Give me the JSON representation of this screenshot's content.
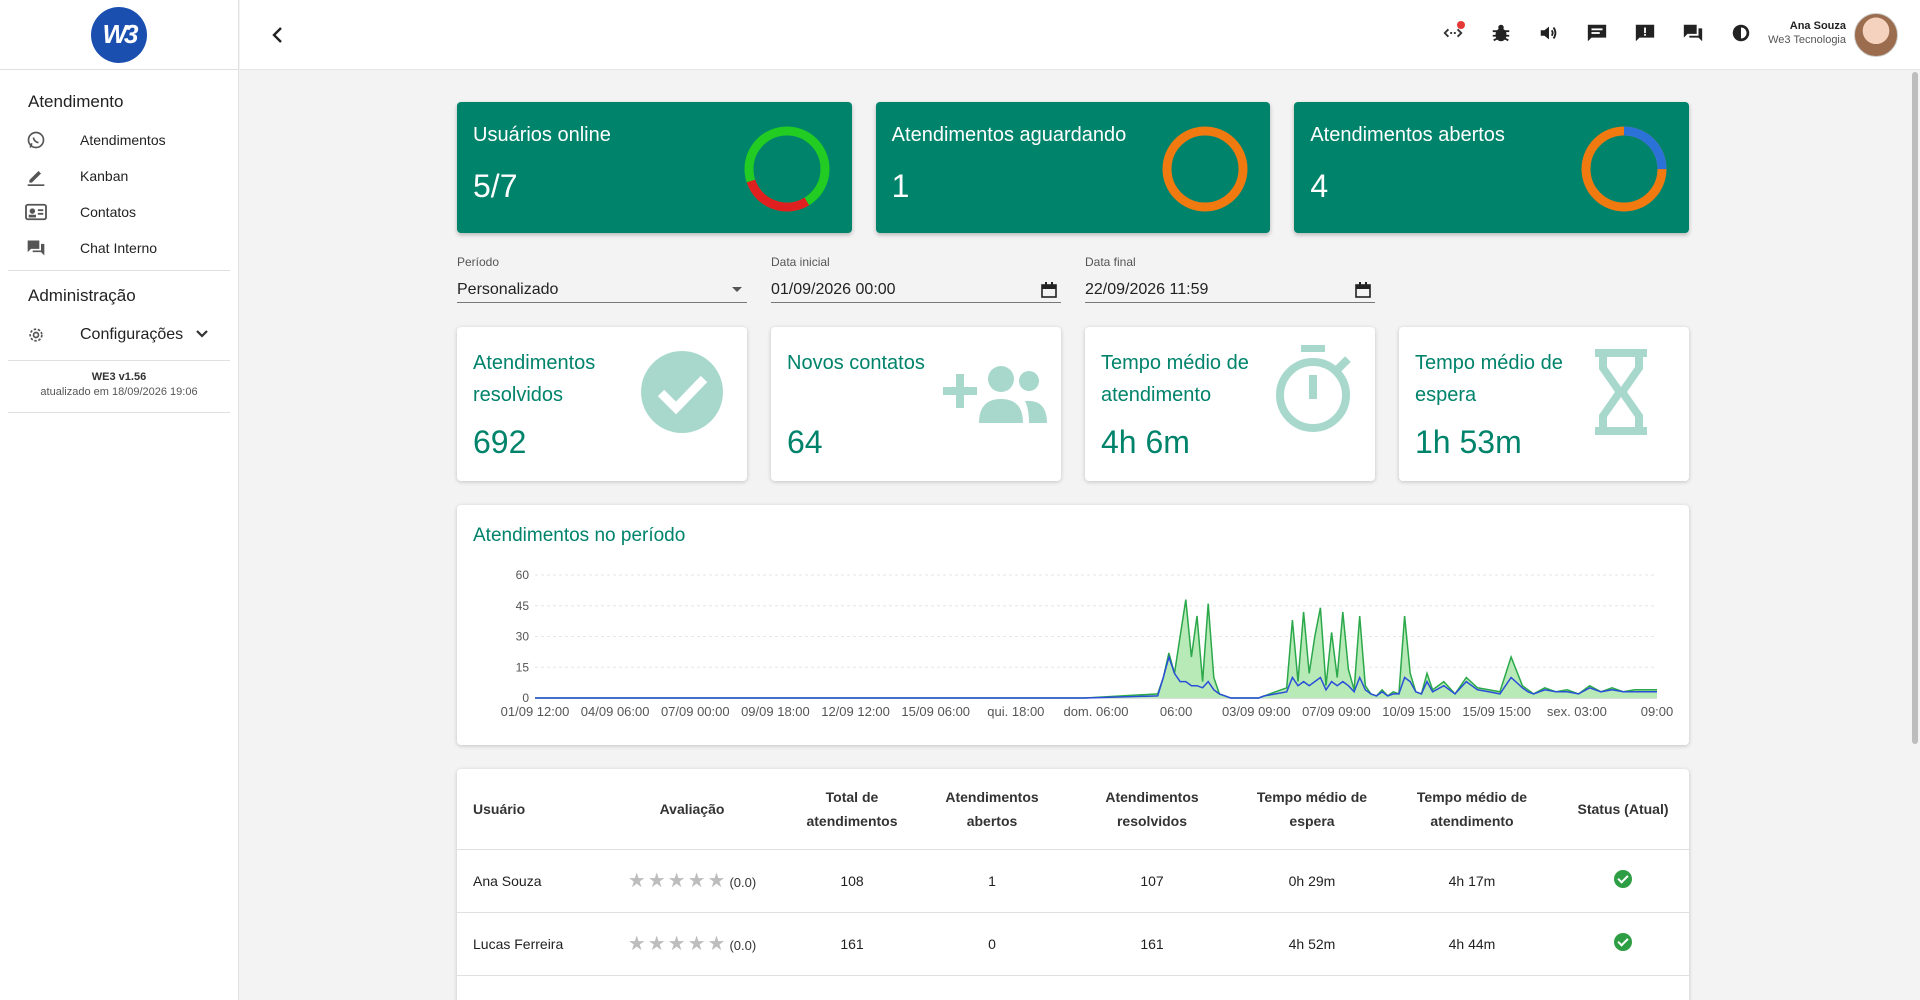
{
  "app": {
    "brand_mark": "W3",
    "version": "WE3 v1.56",
    "updated": "atualizado em 18/09/2026 19:06"
  },
  "sidebar": {
    "section1": "Atendimento",
    "items": [
      {
        "label": "Atendimentos",
        "icon": "whatsapp-icon"
      },
      {
        "label": "Kanban",
        "icon": "pencil-icon"
      },
      {
        "label": "Contatos",
        "icon": "contact-card-icon"
      },
      {
        "label": "Chat Interno",
        "icon": "chat-forum-icon"
      }
    ],
    "section2": "Administração",
    "config_label": "Configurações"
  },
  "header": {
    "user_name": "Ana Souza",
    "user_company": "We3 Tecnologia",
    "icons": [
      "connection-icon",
      "bug-icon",
      "volume-icon",
      "message-icon",
      "feedback-icon",
      "forum-icon",
      "theme-icon"
    ]
  },
  "kpis": [
    {
      "title": "Usuários online",
      "value": "5/7"
    },
    {
      "title": "Atendimentos aguardando",
      "value": "1"
    },
    {
      "title": "Atendimentos abertos",
      "value": "4"
    }
  ],
  "donuts": {
    "online": {
      "online_fraction": 0.714,
      "colors": [
        "#22cc22",
        "#e02020"
      ]
    },
    "waiting": {
      "fraction": 1.0,
      "colors": [
        "#f07a10"
      ]
    },
    "open": {
      "fraction_blue": 0.25,
      "colors": [
        "#2a72d8",
        "#f07a10"
      ]
    }
  },
  "filters": {
    "period_label": "Período",
    "period_value": "Personalizado",
    "start_label": "Data inicial",
    "start_value": "01/09/2026 00:00",
    "end_label": "Data final",
    "end_value": "22/09/2026 11:59"
  },
  "stats": [
    {
      "title": "Atendimentos resolvidos",
      "value": "692",
      "icon": "check-circle-icon"
    },
    {
      "title": "Novos contatos",
      "value": "64",
      "icon": "group-add-icon"
    },
    {
      "title": "Tempo médio de atendimento",
      "value": "4h 6m",
      "icon": "stopwatch-icon"
    },
    {
      "title": "Tempo médio de espera",
      "value": "1h 53m",
      "icon": "hourglass-icon"
    }
  ],
  "chart_data": {
    "type": "area",
    "title": "Atendimentos no período",
    "ylim": [
      0,
      60
    ],
    "yticks": [
      0,
      15,
      30,
      45,
      60
    ],
    "xticks": [
      "01/09 12:00",
      "04/09 06:00",
      "07/09 00:00",
      "09/09 18:00",
      "12/09 12:00",
      "15/09 06:00",
      "qui. 18:00",
      "dom. 06:00",
      "06:00",
      "03/09 09:00",
      "07/09 09:00",
      "10/09 15:00",
      "15/09 15:00",
      "sex. 03:00",
      "09:00"
    ],
    "grid": true,
    "x": [
      0,
      0.07,
      0.14,
      0.2,
      0.28,
      0.35,
      0.42,
      0.49,
      0.555,
      0.56,
      0.565,
      0.57,
      0.575,
      0.58,
      0.585,
      0.59,
      0.595,
      0.6,
      0.605,
      0.61,
      0.615,
      0.62,
      0.625,
      0.63,
      0.635,
      0.64,
      0.645,
      0.65,
      0.66,
      0.67,
      0.675,
      0.68,
      0.685,
      0.69,
      0.695,
      0.7,
      0.705,
      0.71,
      0.715,
      0.72,
      0.725,
      0.73,
      0.735,
      0.74,
      0.745,
      0.75,
      0.755,
      0.76,
      0.765,
      0.77,
      0.775,
      0.78,
      0.785,
      0.79,
      0.795,
      0.8,
      0.81,
      0.82,
      0.83,
      0.84,
      0.85,
      0.86,
      0.87,
      0.88,
      0.885,
      0.89,
      0.9,
      0.91,
      0.92,
      0.93,
      0.94,
      0.95,
      0.96,
      0.97,
      0.98,
      1.0
    ],
    "series": [
      {
        "color": "#2aa84a",
        "fill": "#b8eab8",
        "values": [
          0,
          0,
          0,
          0,
          0,
          0,
          0,
          0,
          2,
          10,
          22,
          12,
          30,
          48,
          20,
          40,
          8,
          46,
          10,
          2,
          1,
          0,
          0,
          0,
          0,
          0,
          0,
          1,
          3,
          5,
          38,
          8,
          42,
          12,
          30,
          44,
          6,
          32,
          10,
          42,
          14,
          4,
          40,
          6,
          2,
          1,
          4,
          1,
          3,
          2,
          40,
          12,
          3,
          2,
          12,
          4,
          8,
          2,
          10,
          5,
          4,
          3,
          20,
          6,
          4,
          2,
          5,
          3,
          4,
          2,
          6,
          3,
          5,
          3,
          4,
          4
        ]
      },
      {
        "color": "#2a4fd8",
        "fill": "none",
        "values": [
          0,
          0,
          0,
          0,
          0,
          0,
          0,
          0,
          1,
          10,
          20,
          12,
          8,
          8,
          6,
          6,
          5,
          8,
          4,
          2,
          1,
          0,
          0,
          0,
          0,
          0,
          0,
          1,
          2,
          3,
          10,
          6,
          8,
          6,
          8,
          10,
          4,
          8,
          6,
          8,
          6,
          3,
          10,
          4,
          2,
          1,
          3,
          1,
          2,
          2,
          10,
          8,
          3,
          2,
          8,
          3,
          6,
          2,
          8,
          4,
          3,
          2,
          10,
          5,
          3,
          2,
          4,
          3,
          3,
          2,
          5,
          3,
          4,
          3,
          3,
          3
        ]
      }
    ]
  },
  "table": {
    "headers": [
      "Usuário",
      "Avaliação",
      "Total de atendimentos",
      "Atendimentos abertos",
      "Atendimentos resolvidos",
      "Tempo médio de espera",
      "Tempo médio de atendimento",
      "Status (Atual)"
    ],
    "rows": [
      {
        "user": "Ana Souza",
        "stars": "★★★★★",
        "rating": "(0.0)",
        "total": "108",
        "open": "1",
        "resolved": "107",
        "wait": "0h 29m",
        "service": "4h 17m",
        "status": "online"
      },
      {
        "user": "Lucas Ferreira",
        "stars": "★★★★★",
        "rating": "(0.0)",
        "total": "161",
        "open": "0",
        "resolved": "161",
        "wait": "4h 52m",
        "service": "4h 44m",
        "status": "online"
      }
    ]
  }
}
